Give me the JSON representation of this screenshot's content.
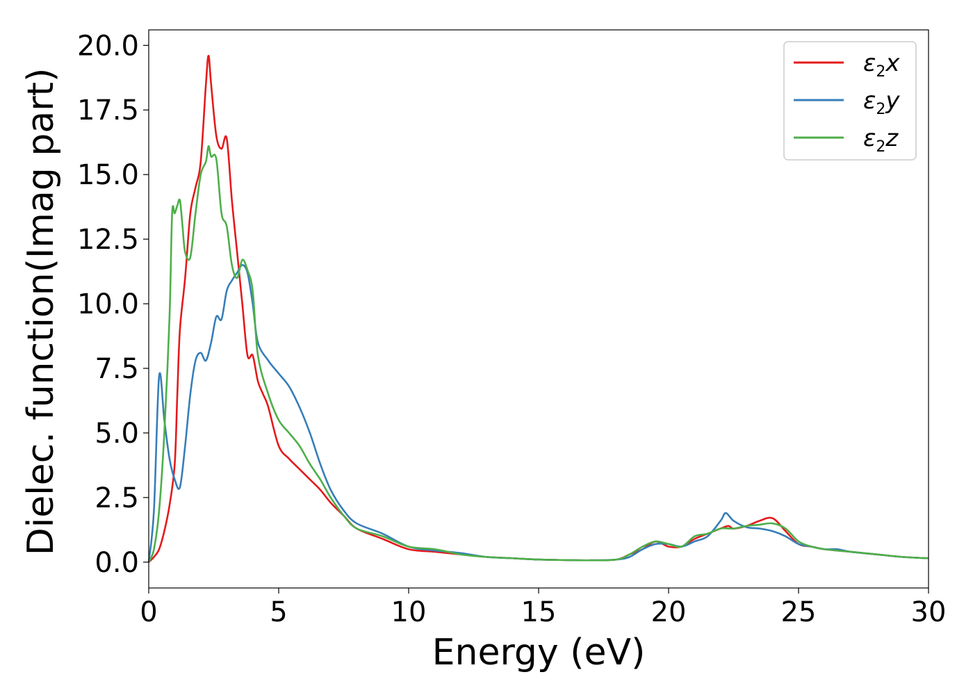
{
  "chart_data": {
    "type": "line",
    "xlabel": "Energy (eV)",
    "ylabel": "Dielec. function(Imag part)",
    "xlim": [
      0,
      30
    ],
    "ylim": [
      -1.0,
      20.6
    ],
    "grid": false,
    "legend_position": "top-right",
    "x_ticks": [
      "0",
      "5",
      "10",
      "15",
      "20",
      "25",
      "30"
    ],
    "y_ticks": [
      "0.0",
      "2.5",
      "5.0",
      "7.5",
      "10.0",
      "12.5",
      "15.0",
      "17.5",
      "20.0"
    ],
    "series": [
      {
        "name": "ε2x",
        "symbol": "ε",
        "subscript": "2",
        "axis": "x",
        "color": "#e41a1c",
        "x": [
          0,
          0.2,
          0.4,
          0.6,
          0.8,
          1.0,
          1.1,
          1.2,
          1.4,
          1.6,
          1.8,
          2.0,
          2.2,
          2.3,
          2.4,
          2.6,
          2.8,
          3.0,
          3.2,
          3.4,
          3.6,
          3.8,
          4.0,
          4.2,
          4.4,
          4.6,
          5.0,
          5.4,
          5.8,
          6.2,
          6.6,
          7.0,
          7.5,
          8.0,
          9.0,
          10.0,
          11.0,
          12.0,
          13.0,
          14.0,
          15.0,
          16.0,
          17.0,
          18.0,
          18.5,
          19.0,
          19.5,
          20.0,
          20.5,
          21.0,
          21.5,
          22.0,
          22.3,
          22.5,
          23.0,
          23.5,
          24.0,
          24.5,
          25.0,
          25.5,
          26.0,
          27.0,
          28.0,
          29.0,
          30.0
        ],
        "values": [
          0,
          0.2,
          0.5,
          1.2,
          2.2,
          3.8,
          6.5,
          9.0,
          11.0,
          13.5,
          14.5,
          15.5,
          18.5,
          19.6,
          18.5,
          16.5,
          16.0,
          16.4,
          14.0,
          12.0,
          10.0,
          8.0,
          8.0,
          7.0,
          6.5,
          6.0,
          4.5,
          4.0,
          3.6,
          3.2,
          2.8,
          2.3,
          1.8,
          1.3,
          0.9,
          0.5,
          0.4,
          0.3,
          0.2,
          0.15,
          0.1,
          0.08,
          0.07,
          0.1,
          0.3,
          0.5,
          0.8,
          0.6,
          0.6,
          0.9,
          1.1,
          1.3,
          1.4,
          1.3,
          1.4,
          1.6,
          1.7,
          1.2,
          0.7,
          0.6,
          0.5,
          0.4,
          0.3,
          0.2,
          0.15
        ]
      },
      {
        "name": "ε2y",
        "symbol": "ε",
        "subscript": "2",
        "axis": "y",
        "color": "#377eb8",
        "x": [
          0,
          0.2,
          0.4,
          0.6,
          0.8,
          1.0,
          1.2,
          1.4,
          1.6,
          1.8,
          2.0,
          2.2,
          2.4,
          2.6,
          2.8,
          3.0,
          3.2,
          3.4,
          3.6,
          3.8,
          4.0,
          4.2,
          4.6,
          5.0,
          5.4,
          5.8,
          6.2,
          6.6,
          7.0,
          7.5,
          8.0,
          9.0,
          10.0,
          11.0,
          12.0,
          13.0,
          14.0,
          15.0,
          16.0,
          17.0,
          18.0,
          18.5,
          19.0,
          19.5,
          20.0,
          20.5,
          21.0,
          21.5,
          22.0,
          22.2,
          22.5,
          23.0,
          23.5,
          24.0,
          24.5,
          25.0,
          25.5,
          26.0,
          26.5,
          27.0,
          28.0,
          29.0,
          30.0
        ],
        "values": [
          0,
          2.0,
          7.2,
          5.5,
          4.0,
          3.2,
          2.9,
          4.5,
          6.5,
          7.8,
          8.1,
          7.8,
          8.5,
          9.5,
          9.4,
          10.5,
          10.9,
          11.2,
          11.5,
          11.2,
          10.0,
          8.5,
          7.8,
          7.3,
          6.8,
          6.0,
          5.0,
          3.8,
          2.8,
          2.0,
          1.5,
          1.1,
          0.6,
          0.45,
          0.35,
          0.2,
          0.15,
          0.1,
          0.08,
          0.07,
          0.1,
          0.2,
          0.5,
          0.7,
          0.7,
          0.6,
          0.8,
          1.0,
          1.6,
          1.9,
          1.6,
          1.35,
          1.3,
          1.2,
          1.0,
          0.7,
          0.6,
          0.5,
          0.5,
          0.4,
          0.3,
          0.2,
          0.15
        ]
      },
      {
        "name": "ε2z",
        "symbol": "ε",
        "subscript": "2",
        "axis": "z",
        "color": "#4daf4a",
        "x": [
          0,
          0.2,
          0.4,
          0.6,
          0.8,
          0.9,
          1.0,
          1.1,
          1.2,
          1.3,
          1.4,
          1.6,
          1.8,
          2.0,
          2.2,
          2.3,
          2.4,
          2.6,
          2.8,
          3.0,
          3.2,
          3.4,
          3.6,
          3.8,
          4.0,
          4.2,
          4.6,
          5.0,
          5.4,
          5.8,
          6.2,
          6.6,
          7.0,
          7.5,
          8.0,
          9.0,
          10.0,
          11.0,
          12.0,
          13.0,
          14.0,
          15.0,
          16.0,
          17.0,
          18.0,
          18.5,
          19.0,
          19.5,
          20.0,
          20.5,
          21.0,
          21.5,
          22.0,
          22.5,
          23.0,
          23.5,
          24.0,
          24.5,
          25.0,
          25.5,
          26.0,
          27.0,
          28.0,
          29.0,
          30.0
        ],
        "values": [
          0,
          0.5,
          2.0,
          5.0,
          9.5,
          13.5,
          13.5,
          13.8,
          14.0,
          13.0,
          12.0,
          11.8,
          13.5,
          15.0,
          15.5,
          16.1,
          15.7,
          15.6,
          13.5,
          13.0,
          11.5,
          11.0,
          11.7,
          11.3,
          10.5,
          8.0,
          6.5,
          5.5,
          5.0,
          4.5,
          3.8,
          3.2,
          2.5,
          1.8,
          1.3,
          1.0,
          0.6,
          0.5,
          0.3,
          0.2,
          0.15,
          0.1,
          0.08,
          0.07,
          0.1,
          0.3,
          0.6,
          0.8,
          0.7,
          0.6,
          1.0,
          1.1,
          1.3,
          1.3,
          1.4,
          1.45,
          1.5,
          1.3,
          0.8,
          0.6,
          0.5,
          0.4,
          0.3,
          0.2,
          0.15
        ]
      }
    ]
  }
}
